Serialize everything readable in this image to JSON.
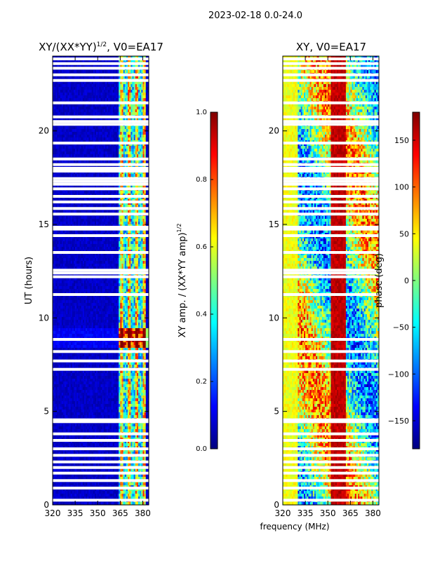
{
  "figure": {
    "suptitle": "2023-02-18 0.0-24.0"
  },
  "chart_data": [
    {
      "type": "heatmap",
      "title": "XY/(XX*YY)",
      "title_sup": "1/2",
      "title_suffix": ", V0=EA17",
      "xlabel": "",
      "ylabel": "UT (hours)",
      "xlim": [
        320,
        384
      ],
      "ylim": [
        0,
        24
      ],
      "x_ticks": [
        320,
        335,
        350,
        365,
        380
      ],
      "y_ticks": [
        0,
        5,
        10,
        15,
        20
      ],
      "colorbar": {
        "label": "XY amp. / (XX*YY amp)",
        "label_sup": "1/2",
        "range": [
          0.0,
          1.0
        ],
        "ticks": [
          "0.0",
          "0.2",
          "0.4",
          "0.6",
          "0.8",
          "1.0"
        ]
      },
      "bright_channel_band_mhz": [
        364,
        382
      ],
      "high_amplitude_ut_hours": [
        8.4,
        9.4
      ]
    },
    {
      "type": "heatmap",
      "title": "XY, V0=EA17",
      "xlabel": "frequency (MHz)",
      "ylabel": "",
      "xlim": [
        320,
        384
      ],
      "ylim": [
        0,
        24
      ],
      "x_ticks": [
        320,
        335,
        350,
        365,
        380
      ],
      "y_ticks": [
        0,
        5,
        10,
        15,
        20
      ],
      "colorbar": {
        "label": "phase (deg)",
        "range": [
          -180,
          180
        ],
        "ticks": [
          "150",
          "100",
          "50",
          "0",
          "−50",
          "−100",
          "−150"
        ]
      }
    }
  ],
  "flagged_ut_hours": [
    0.25,
    0.9,
    1.3,
    1.7,
    2.0,
    2.3,
    2.65,
    3.0,
    3.45,
    3.8,
    4.45,
    4.55,
    7.25,
    7.7,
    8.2,
    8.85,
    11.25,
    12.2,
    12.4,
    12.55,
    13.5,
    14.4,
    14.75,
    14.85,
    15.55,
    15.85,
    16.2,
    16.5,
    16.9,
    17.15,
    17.3,
    17.45,
    17.85,
    18.0,
    18.2,
    18.5,
    19.35,
    20.35,
    20.5,
    20.75,
    21.5,
    22.7,
    23.0,
    23.35,
    23.6,
    23.85
  ]
}
